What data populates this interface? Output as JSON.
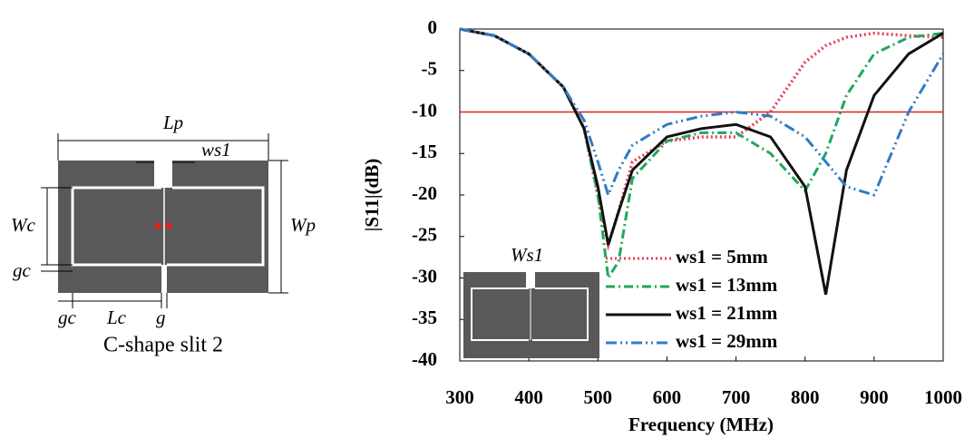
{
  "chart_data": {
    "type": "line",
    "xlabel": "Frequency (MHz)",
    "ylabel": "|S11|(dB)",
    "x": [
      300,
      350,
      400,
      450,
      480,
      500,
      515,
      530,
      550,
      600,
      650,
      700,
      750,
      800,
      830,
      860,
      900,
      950,
      1000
    ],
    "series": [
      {
        "name": "ws1  = 5mm",
        "color": "#e8405c",
        "style": "dotted",
        "values": [
          0,
          -0.8,
          -3,
          -7,
          -12,
          -20,
          -26,
          -22,
          -16,
          -13.5,
          -13,
          -13,
          -10,
          -4,
          -2,
          -1,
          -0.5,
          -0.8,
          -1
        ]
      },
      {
        "name": "ws1  = 13mm",
        "color": "#1fa85a",
        "style": "dashdot",
        "values": [
          0,
          -0.8,
          -3,
          -7,
          -12,
          -20,
          -30,
          -28,
          -18,
          -13.5,
          -12.5,
          -12.5,
          -15,
          -19.5,
          -15,
          -8,
          -3,
          -1,
          -0.5
        ]
      },
      {
        "name": "ws1  = 21mm",
        "color": "#111111",
        "style": "solid",
        "values": [
          0,
          -0.8,
          -3,
          -7,
          -12,
          -19,
          -26,
          -22,
          -17,
          -13,
          -12,
          -11.5,
          -13,
          -19,
          -32,
          -17,
          -8,
          -3,
          -0.5
        ]
      },
      {
        "name": "ws1  = 29mm",
        "color": "#2f7cc4",
        "style": "dashdotdot",
        "values": [
          0,
          -0.8,
          -3,
          -7,
          -11,
          -16,
          -20,
          -17,
          -14,
          -11.5,
          -10.5,
          -10,
          -10.5,
          -13,
          -16,
          -19,
          -20,
          -10,
          -3
        ]
      }
    ],
    "xlim": [
      300,
      1000
    ],
    "xticks": [
      300,
      400,
      500,
      600,
      700,
      800,
      900,
      1000
    ],
    "ylim": [
      -40,
      0
    ],
    "yticks": [
      0,
      -5,
      -10,
      -15,
      -20,
      -25,
      -30,
      -35,
      -40
    ],
    "reference_line": {
      "value": -10,
      "color": "#e02020"
    },
    "inset_label": "Ws1"
  },
  "diagram": {
    "labels": [
      "Lp",
      "ws1",
      "Wc",
      "Wp",
      "gc",
      "gc",
      "Lc",
      "g"
    ],
    "caption": "C-shape slit 2"
  }
}
